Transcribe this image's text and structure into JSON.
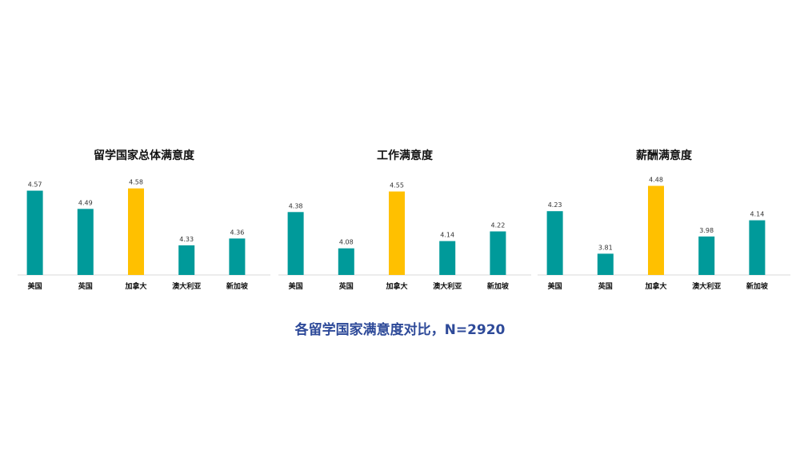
{
  "colors": {
    "teal": "#009a9a",
    "gold": "#ffc000",
    "axis": "#d9d9d9"
  },
  "footer": {
    "title": "各留学国家满意度对比，N=2920"
  },
  "chart_data": [
    {
      "type": "bar",
      "title": "留学国家总体满意度",
      "categories": [
        "美国",
        "英国",
        "加拿大",
        "澳大利亚",
        "新加坡"
      ],
      "values": [
        4.57,
        4.49,
        4.58,
        4.33,
        4.36
      ],
      "highlight_index": 2,
      "ylim": [
        4.2,
        4.6
      ]
    },
    {
      "type": "bar",
      "title": "工作满意度",
      "categories": [
        "美国",
        "英国",
        "加拿大",
        "澳大利亚",
        "新加坡"
      ],
      "values": [
        4.38,
        4.08,
        4.55,
        4.14,
        4.22
      ],
      "highlight_index": 2,
      "ylim": [
        3.86,
        4.6
      ]
    },
    {
      "type": "bar",
      "title": "薪酬满意度",
      "categories": [
        "美国",
        "英国",
        "加拿大",
        "澳大利亚",
        "新加坡"
      ],
      "values": [
        4.23,
        3.81,
        4.48,
        3.98,
        4.14
      ],
      "highlight_index": 2,
      "ylim": [
        3.6,
        4.5
      ]
    }
  ]
}
